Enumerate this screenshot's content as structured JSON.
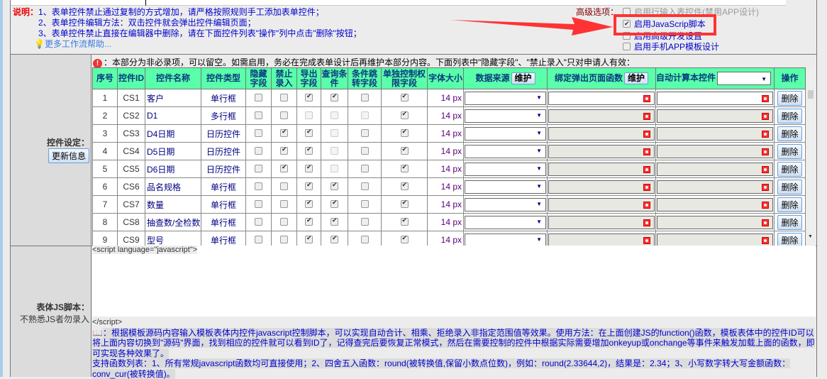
{
  "notes": {
    "label": "说明：",
    "lines": [
      "1、表单控件禁止通过复制的方式增加，请严格按照规则手工添加表单控件；",
      "2、表单控件编辑方法：双击控件就会弹出控件编辑页面；",
      "3、表单控件禁止直接在编辑器中删除，请在下面控件列表\"操作\"列中点击\"删除\"按钮；"
    ],
    "help_link": "更多工作流帮助..."
  },
  "advanced": {
    "label": "高级选项：",
    "options": [
      {
        "label": "启用行输入表控件(禁用APP设计)",
        "checked": false
      },
      {
        "label": "启用JavaScrip脚本",
        "checked": true
      },
      {
        "label": "启用高级开发设置",
        "checked": false
      },
      {
        "label": "启用手机APP模板设计",
        "checked": false
      }
    ]
  },
  "accent": {
    "header_bg": "#5affaa",
    "highlight_box": "#ff3333"
  },
  "controls": {
    "section_label": "控件设定：",
    "update_button": "更新信息",
    "warning": "：本部分为非必录项，可以留空。如需启用，务必在完成表单设计后再维护本部分内容。下面列表中\"隐藏字段\"、\"禁止录入\"只对申请人有效：",
    "headers": [
      "序号",
      "控件ID",
      "控件名称",
      "控件类型",
      "隐藏字段",
      "禁止录入",
      "导出字段",
      "查询条件",
      "条件跳转字段",
      "单独控制权限字段",
      "字体大小",
      "数据来源",
      "绑定弹出页面函数",
      "自动计算本控件",
      "操作"
    ],
    "maintain_label": "维护",
    "delete_label": "删除",
    "rows": [
      {
        "no": "1",
        "id": "CS1",
        "name": "客户",
        "type": "单行框",
        "hidden": 0,
        "readonly": 0,
        "export": 1,
        "query": 1,
        "jump": 0,
        "perm": 1,
        "font": "14 px",
        "editable": true
      },
      {
        "no": "2",
        "id": "CS2",
        "name": "D1",
        "type": "多行框",
        "hidden": 0,
        "readonly": 0,
        "export": -1,
        "query": -1,
        "jump": -1,
        "perm": 1,
        "font": "14 px",
        "editable": false
      },
      {
        "no": "3",
        "id": "CS3",
        "name": "D4日期",
        "type": "日历控件",
        "hidden": 0,
        "readonly": 1,
        "export": 1,
        "query": -1,
        "jump": 0,
        "perm": 1,
        "font": "14 px",
        "editable": false
      },
      {
        "no": "4",
        "id": "CS4",
        "name": "D5日期",
        "type": "日历控件",
        "hidden": 0,
        "readonly": 1,
        "export": 1,
        "query": -1,
        "jump": 0,
        "perm": 1,
        "font": "14 px",
        "editable": false
      },
      {
        "no": "5",
        "id": "CS5",
        "name": "D6日期",
        "type": "日历控件",
        "hidden": 0,
        "readonly": 1,
        "export": 1,
        "query": -1,
        "jump": 0,
        "perm": 1,
        "font": "14 px",
        "editable": false
      },
      {
        "no": "6",
        "id": "CS6",
        "name": "品名规格",
        "type": "单行框",
        "hidden": 0,
        "readonly": 0,
        "export": 1,
        "query": 1,
        "jump": 0,
        "perm": 1,
        "font": "14 px",
        "editable": false
      },
      {
        "no": "7",
        "id": "CS7",
        "name": "数量",
        "type": "单行框",
        "hidden": 0,
        "readonly": 0,
        "export": 1,
        "query": 1,
        "jump": 0,
        "perm": 1,
        "font": "14 px",
        "editable": false
      },
      {
        "no": "8",
        "id": "CS8",
        "name": "抽查数/全检数",
        "type": "单行框",
        "hidden": 0,
        "readonly": 0,
        "export": 1,
        "query": 1,
        "jump": 0,
        "perm": 1,
        "font": "14 px",
        "editable": false
      },
      {
        "no": "9",
        "id": "CS9",
        "name": "型号",
        "type": "单行框",
        "hidden": 0,
        "readonly": 0,
        "export": 1,
        "query": 1,
        "jump": 0,
        "perm": 1,
        "font": "14 px",
        "editable": false
      }
    ]
  },
  "script": {
    "section_label": "表体JS脚本：",
    "sub_label": "不熟悉JS者勿录入",
    "open_tag": "<script language=\"javascript\">",
    "close_tag": "</script>",
    "info1": "：根据模板源码内容输入模板表体内控件javascript控制脚本，可以实现自动合计、相乘、拒绝录入非指定范围值等效果。使用方法：在上面创建JS的function()函数，模板表体中的控件ID可以将上面内容切换到\"源码\"界面，找到相应的控件就可以看到ID了，记得查完后要恢复正常模式，然后在需要控制的控件中根据实际需要增加onkeyup或onchange等事件来触发加载上面的函数，即可实现各种效果了。",
    "info2": "支持函数列表：1、所有常规javascript函数均可直接使用；2、四舍五入函数：round(被转换值,保留小数点位数)，例如：round(2.33644,2)，结果是：2.34；3、小写数字转大写金额函数：conv_cur(被转换值)。"
  }
}
